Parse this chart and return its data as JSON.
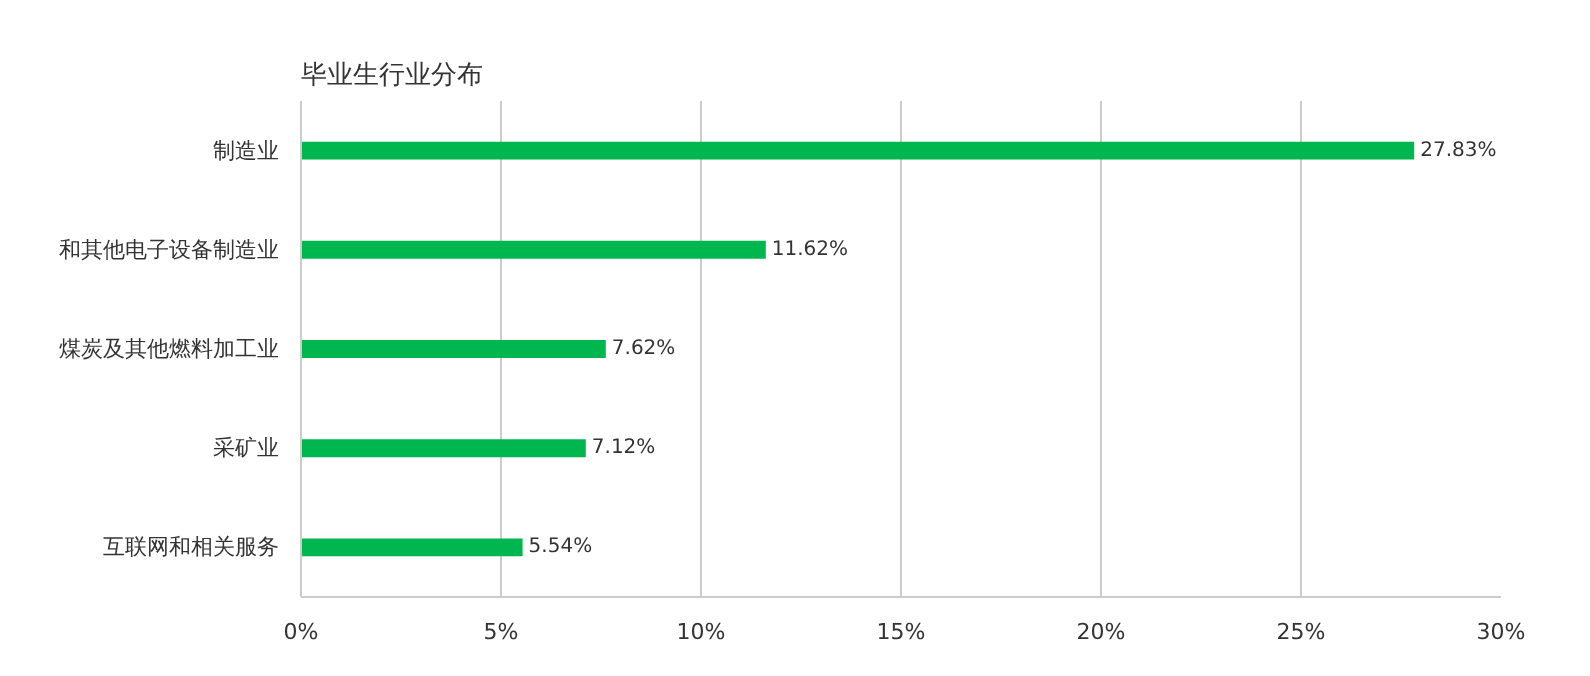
{
  "chart_data": {
    "type": "bar",
    "orientation": "horizontal",
    "title": "毕业生行业分布",
    "categories": [
      "制造业",
      "和其他电子设备制造业",
      "煤炭及其他燃料加工业",
      "采矿业",
      "互联网和相关服务"
    ],
    "values": [
      27.83,
      11.62,
      7.62,
      7.12,
      5.54
    ],
    "value_labels": [
      "27.83%",
      "11.62%",
      "7.62%",
      "7.12%",
      "5.54%"
    ],
    "color": "#00b64f",
    "xlim": [
      0,
      30
    ],
    "xticks": [
      {
        "value": 0,
        "label": "0%"
      },
      {
        "value": 5,
        "label": "5%"
      },
      {
        "value": 10,
        "label": "10%"
      },
      {
        "value": 15,
        "label": "15%"
      },
      {
        "value": 20,
        "label": "20%"
      },
      {
        "value": 25,
        "label": "25%"
      },
      {
        "value": 30,
        "label": "30%"
      }
    ],
    "grid": "x"
  }
}
